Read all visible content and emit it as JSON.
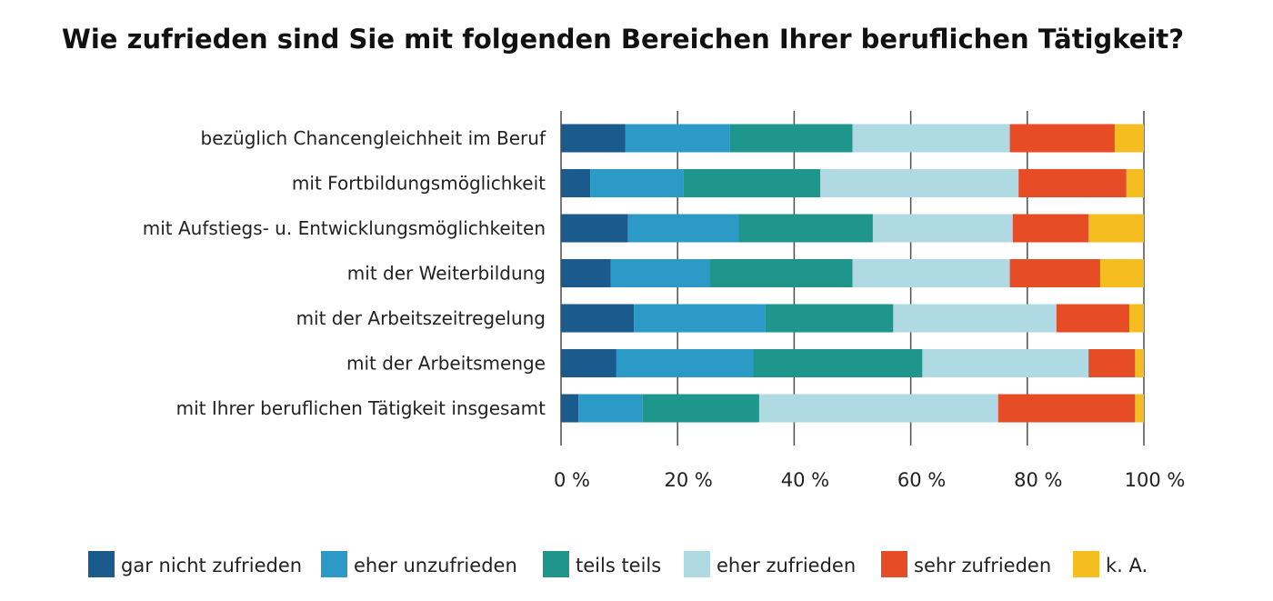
{
  "chart_data": {
    "type": "bar",
    "orientation": "horizontal",
    "stacked": true,
    "percent_stacked": true,
    "title": "Wie zufrieden sind Sie mit folgenden Bereichen Ihrer beruflichen Tätigkeit?",
    "categories": [
      "bezüglich Chancengleichheit im Beruf",
      "mit Fortbildungsmöglichkeit",
      "mit Aufstiegs- u. Entwicklungsmöglichkeiten",
      "mit der Weiterbildung",
      "mit der Arbeitszeitregelung",
      "mit der Arbeitsmenge",
      "mit Ihrer beruflichen Tätigkeit insgesamt"
    ],
    "series": [
      {
        "name": "gar nicht zufrieden",
        "color": "#1a5a8c",
        "values": [
          11,
          5,
          11.5,
          8.5,
          12.5,
          9.5,
          3
        ]
      },
      {
        "name": "eher unzufrieden",
        "color": "#2b9ac6",
        "values": [
          18,
          16,
          19,
          17,
          22.5,
          23.5,
          11
        ]
      },
      {
        "name": "teils teils",
        "color": "#1f968c",
        "values": [
          21,
          23.5,
          23,
          24.5,
          22,
          29,
          20
        ]
      },
      {
        "name": "eher zufrieden",
        "color": "#afd9e3",
        "values": [
          27,
          34,
          24,
          27,
          28,
          28.5,
          41
        ]
      },
      {
        "name": "sehr zufrieden",
        "color": "#e64d26",
        "values": [
          18,
          18.5,
          13,
          15.5,
          12.5,
          8,
          23.5
        ]
      },
      {
        "name": "k. A.",
        "color": "#f5bd1f",
        "values": [
          5,
          3,
          9.5,
          7.5,
          2.5,
          1.5,
          1.5
        ]
      }
    ],
    "xlim": [
      0,
      100
    ],
    "xticks": [
      0,
      20,
      40,
      60,
      80,
      100
    ],
    "xtick_labels": [
      "0 %",
      "20 %",
      "40 %",
      "60 %",
      "80 %",
      "100 %"
    ],
    "grid": "vertical",
    "legend_position": "bottom"
  }
}
